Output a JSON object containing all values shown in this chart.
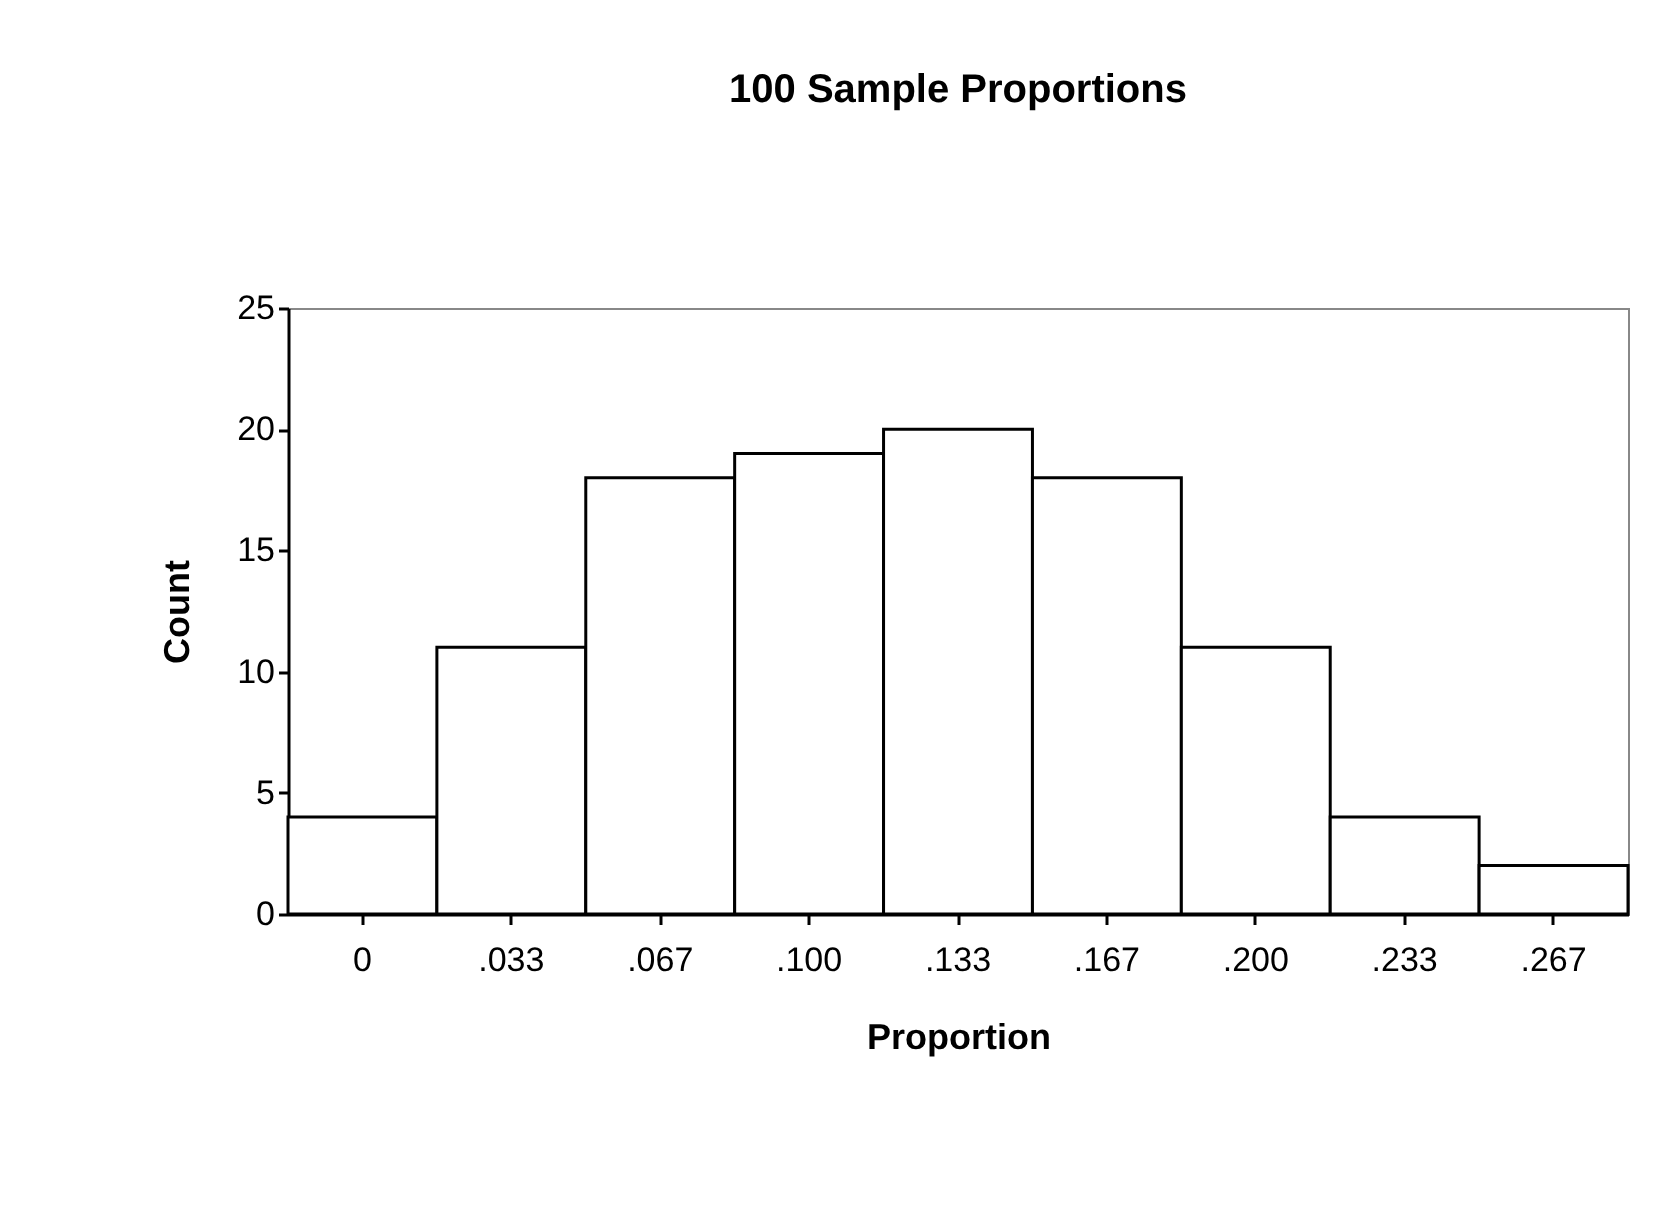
{
  "chart_data": {
    "type": "bar",
    "title": "100 Sample Proportions",
    "xlabel": "Proportion",
    "ylabel": "Count",
    "categories": [
      "0",
      ".033",
      ".067",
      ".100",
      ".133",
      ".167",
      ".200",
      ".233",
      ".267"
    ],
    "values": [
      4,
      11,
      18,
      19,
      20,
      18,
      11,
      4,
      2
    ],
    "color": "#ffffff",
    "ylim": [
      0,
      25
    ],
    "yticks": [
      0,
      5,
      10,
      15,
      20,
      25
    ],
    "grid": false
  }
}
